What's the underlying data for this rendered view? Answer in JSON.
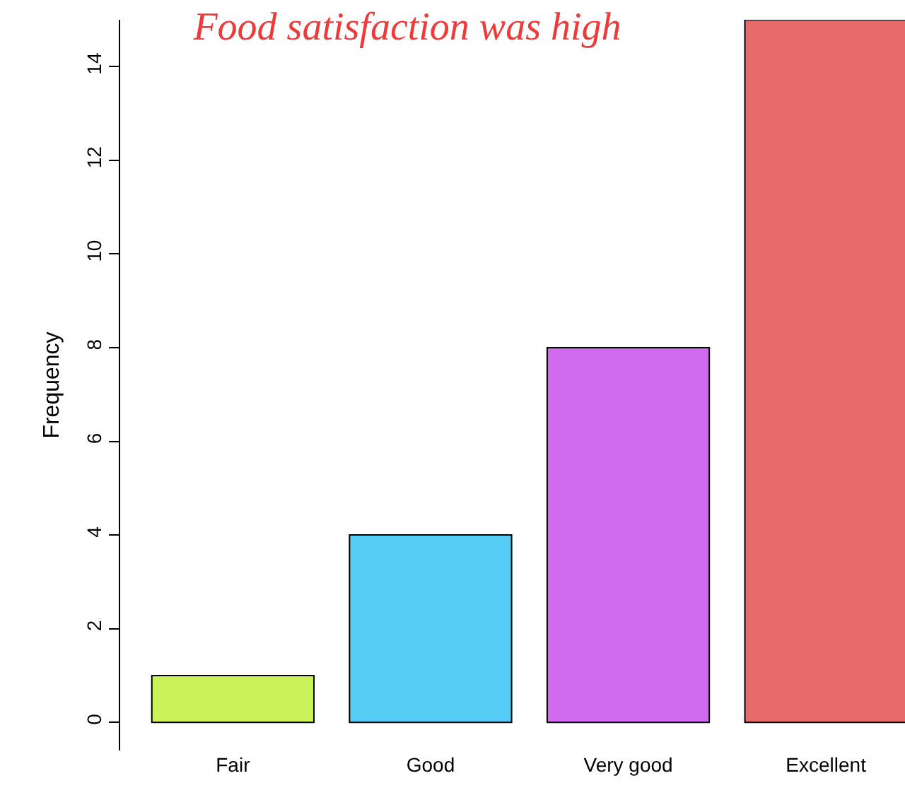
{
  "chart_data": {
    "type": "bar",
    "title": "Food satisfaction was high",
    "ylabel": "Frequency",
    "categories": [
      "Fair",
      "Good",
      "Very good",
      "Excellent"
    ],
    "values": [
      1,
      4,
      8,
      15
    ],
    "colors": [
      "#ccf25a",
      "#55ccf5",
      "#d16aee",
      "#e96a6a"
    ],
    "ylim": [
      -0.6,
      15
    ],
    "yticks": [
      0,
      2,
      4,
      6,
      8,
      10,
      12,
      14
    ]
  }
}
